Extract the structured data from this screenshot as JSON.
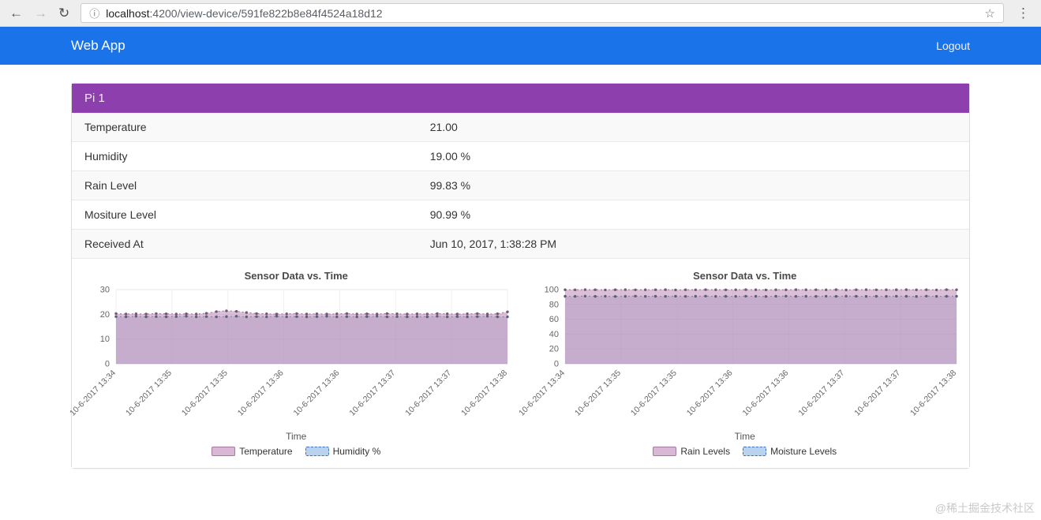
{
  "browser": {
    "url_host": "localhost",
    "url_path": ":4200/view-device/591fe822b8e84f4524a18d12"
  },
  "navbar": {
    "brand": "Web App",
    "logout_label": "Logout",
    "color": "#1a73e8"
  },
  "panel": {
    "title": "Pi 1",
    "header_color": "#8e3fae",
    "rows": [
      {
        "label": "Temperature",
        "value": "21.00"
      },
      {
        "label": "Humidity",
        "value": "19.00 %"
      },
      {
        "label": "Rain Level",
        "value": "99.83 %"
      },
      {
        "label": "Mositure Level",
        "value": "90.99 %"
      },
      {
        "label": "Received At",
        "value": "Jun 10, 2017, 1:38:28 PM"
      }
    ]
  },
  "chart_data": [
    {
      "type": "area",
      "title": "Sensor Data vs. Time",
      "xlabel": "Time",
      "ylim": [
        0,
        30
      ],
      "yticks": [
        0,
        10,
        20,
        30
      ],
      "grid": true,
      "legend_position": "bottom",
      "x_tick_labels": [
        "10-6-2017 13:34",
        "10-6-2017 13:35",
        "10-6-2017 13:35",
        "10-6-2017 13:36",
        "10-6-2017 13:36",
        "10-6-2017 13:37",
        "10-6-2017 13:37",
        "10-6-2017 13:38"
      ],
      "series": [
        {
          "name": "Temperature",
          "area_fill": "rgba(188,138,183,0.55)",
          "line": "#a678a2",
          "dot": "#6f5a77",
          "legend_fill": "#d9b8d6",
          "legend_border": "#a678a2",
          "legend_dash": false,
          "values": [
            20.3,
            20.1,
            20.2,
            20.1,
            20.3,
            20.2,
            20.1,
            20.2,
            20.1,
            20.4,
            21.1,
            21.4,
            21.2,
            20.7,
            20.3,
            20.2,
            20.1,
            20.2,
            20.3,
            20.1,
            20.2,
            20.1,
            20.2,
            20.3,
            20.1,
            20.2,
            20.1,
            20.3,
            20.2,
            20.1,
            20.2,
            20.1,
            20.3,
            20.2,
            20.1,
            20.2,
            20.3,
            20.1,
            20.2,
            21.0
          ]
        },
        {
          "name": "Humidity %",
          "area_fill": "rgba(160,140,190,0.35)",
          "line": "#8b88b0",
          "dot": "#5d5d7a",
          "legend_fill": "#b9d2ef",
          "legend_border": "#3f74bb",
          "legend_dash": true,
          "values": [
            19.1,
            19.0,
            19.2,
            19.0,
            19.1,
            19.0,
            19.1,
            19.2,
            19.0,
            19.1,
            19.0,
            19.1,
            19.2,
            19.0,
            19.1,
            19.0,
            19.2,
            19.0,
            19.1,
            19.0,
            19.1,
            19.2,
            19.0,
            19.1,
            19.0,
            19.1,
            19.2,
            19.0,
            19.1,
            19.0,
            19.1,
            19.0,
            19.2,
            19.0,
            19.1,
            19.0,
            19.1,
            19.2,
            19.0,
            19.0
          ]
        }
      ]
    },
    {
      "type": "area",
      "title": "Sensor Data vs. Time",
      "xlabel": "Time",
      "ylim": [
        0,
        100
      ],
      "yticks": [
        0,
        20,
        40,
        60,
        80,
        100
      ],
      "grid": true,
      "legend_position": "bottom",
      "x_tick_labels": [
        "10-6-2017 13:34",
        "10-6-2017 13:35",
        "10-6-2017 13:35",
        "10-6-2017 13:36",
        "10-6-2017 13:36",
        "10-6-2017 13:37",
        "10-6-2017 13:37",
        "10-6-2017 13:38"
      ],
      "series": [
        {
          "name": "Rain Levels",
          "area_fill": "rgba(188,138,183,0.55)",
          "line": "#a678a2",
          "dot": "#6f5a77",
          "legend_fill": "#d9b8d6",
          "legend_border": "#a678a2",
          "legend_dash": false,
          "values": [
            99.8,
            99.7,
            99.9,
            99.8,
            99.6,
            99.8,
            99.9,
            99.7,
            99.8,
            99.8,
            99.9,
            99.6,
            99.8,
            99.7,
            99.9,
            99.8,
            99.7,
            99.8,
            99.9,
            99.8,
            99.6,
            99.8,
            99.7,
            99.9,
            99.8,
            99.8,
            99.7,
            99.9,
            99.6,
            99.8,
            99.9,
            99.7,
            99.8,
            99.8,
            99.9,
            99.7,
            99.8,
            99.6,
            99.9,
            99.83
          ]
        },
        {
          "name": "Moisture Levels",
          "area_fill": "rgba(160,140,190,0.35)",
          "line": "#8b88b0",
          "dot": "#5d5d7a",
          "legend_fill": "#b9d2ef",
          "legend_border": "#3f74bb",
          "legend_dash": true,
          "values": [
            91.0,
            90.8,
            91.2,
            90.9,
            91.1,
            90.7,
            91.0,
            91.2,
            90.8,
            91.0,
            90.9,
            91.1,
            90.8,
            91.0,
            91.2,
            90.9,
            91.0,
            90.8,
            91.1,
            91.0,
            90.7,
            91.0,
            91.2,
            90.8,
            91.0,
            90.9,
            91.1,
            90.8,
            91.2,
            91.0,
            90.9,
            91.0,
            90.8,
            91.1,
            91.0,
            90.7,
            91.2,
            90.9,
            91.0,
            90.99
          ]
        }
      ]
    }
  ],
  "watermark": "@稀土掘金技术社区"
}
